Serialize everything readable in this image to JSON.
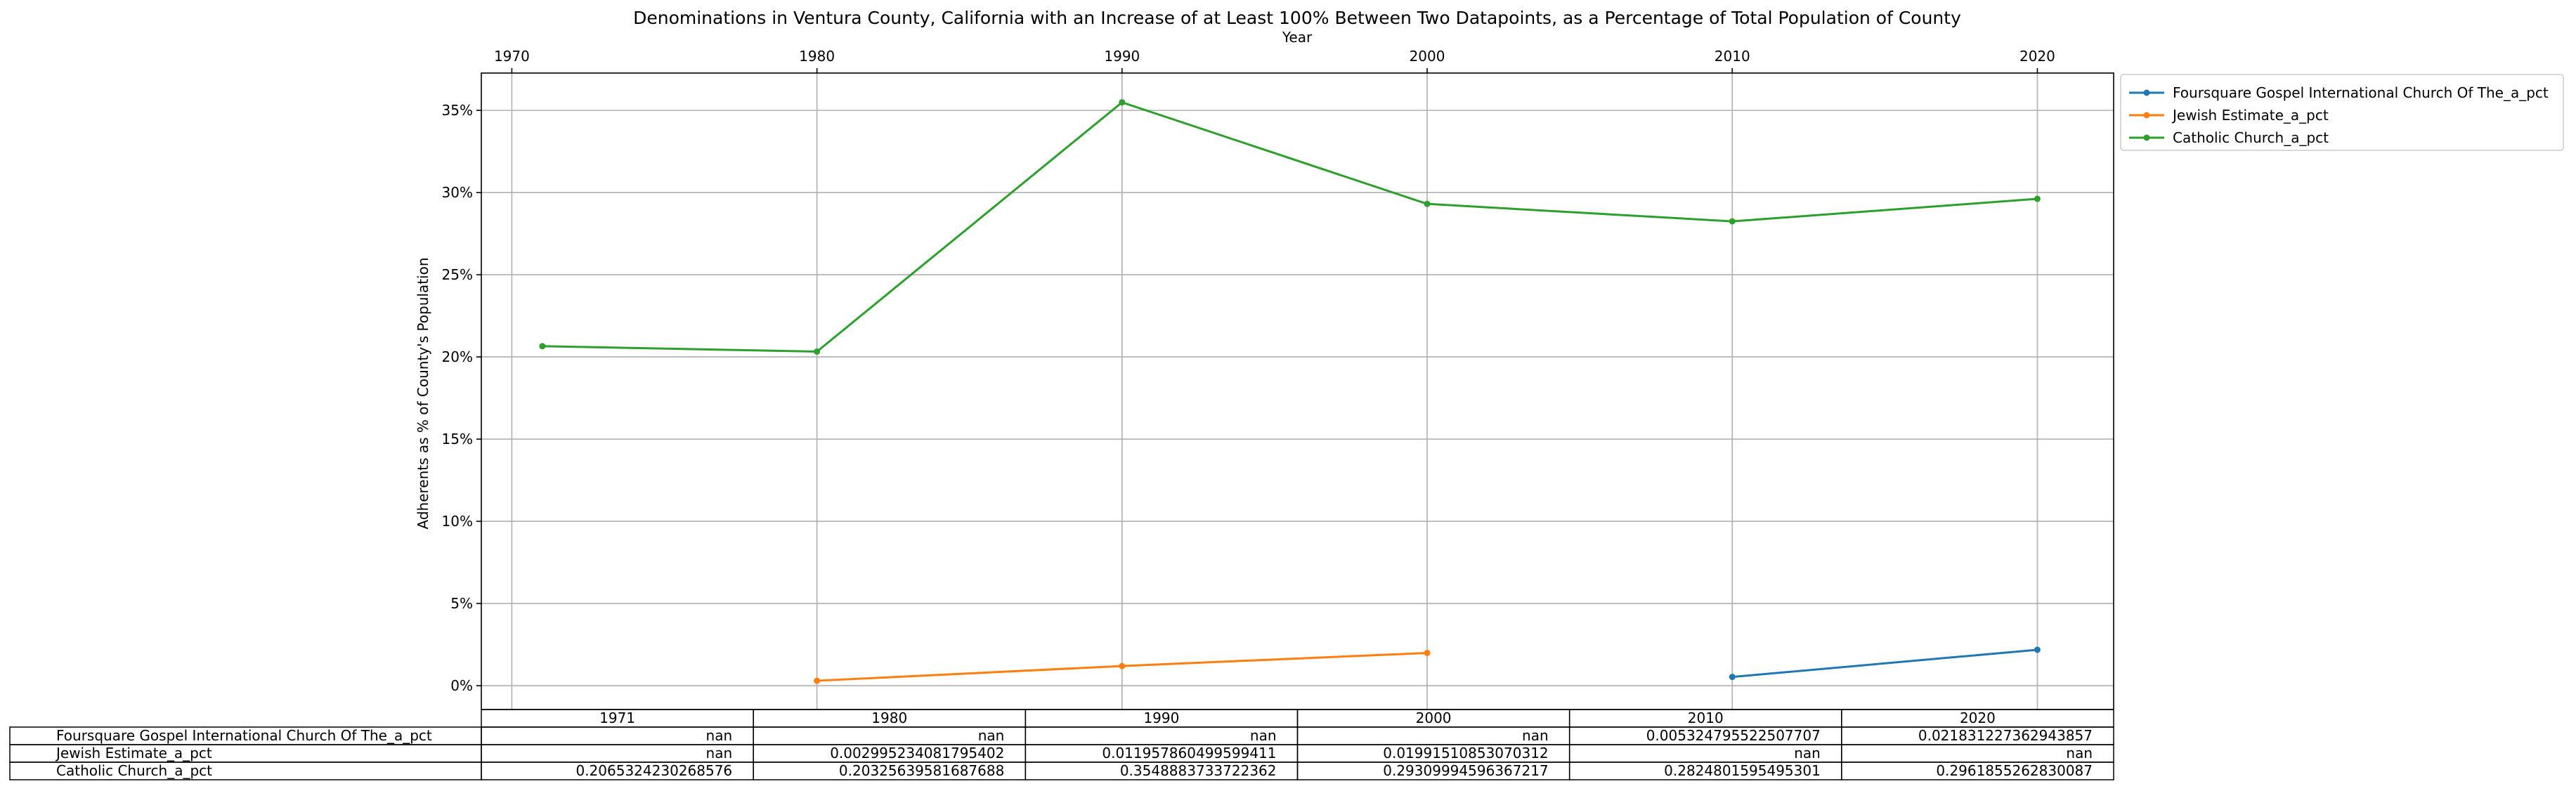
{
  "chart_data": {
    "type": "line",
    "title": "Denominations in Ventura County, California with an Increase of at Least 100% Between Two Datapoints, as a Percentage of Total Population of County",
    "xlabel": "Year",
    "ylabel": "Adherents as % of County's Population",
    "x_ticks": [
      "1970",
      "1980",
      "1990",
      "2000",
      "2010",
      "2020"
    ],
    "x_tick_values": [
      1970,
      1980,
      1990,
      2000,
      2010,
      2020
    ],
    "xlim": [
      1969,
      2022.5
    ],
    "y_ticks": [
      "0%",
      "5%",
      "10%",
      "15%",
      "20%",
      "25%",
      "30%",
      "35%"
    ],
    "y_tick_values": [
      0,
      0.05,
      0.1,
      0.15,
      0.2,
      0.25,
      0.3,
      0.35
    ],
    "ylim": [
      -0.0145,
      0.3727
    ],
    "grid": true,
    "legend_position": "outside top-right",
    "x": [
      1971,
      1980,
      1990,
      2000,
      2010,
      2020
    ],
    "series": [
      {
        "name": "Foursquare Gospel International Church Of The_a_pct",
        "color": "#1f77b4",
        "values": [
          null,
          null,
          null,
          null,
          0.005324795522507707,
          0.021831227362943857
        ]
      },
      {
        "name": "Jewish Estimate_a_pct",
        "color": "#ff7f0e",
        "values": [
          null,
          0.002995234081795402,
          0.011957860499599411,
          0.01991510853070312,
          null,
          null
        ]
      },
      {
        "name": "Catholic Church_a_pct",
        "color": "#2ca02c",
        "values": [
          0.2065324230268576,
          0.20325639581687688,
          0.3548883733722362,
          0.29309994596367217,
          0.2824801595495301,
          0.2961855262830087
        ]
      }
    ],
    "table": {
      "columns": [
        "1971",
        "1980",
        "1990",
        "2000",
        "2010",
        "2020"
      ],
      "rows": [
        {
          "label": "Foursquare Gospel International Church Of The_a_pct",
          "cells": [
            "nan",
            "nan",
            "nan",
            "nan",
            "0.005324795522507707",
            "0.021831227362943857"
          ]
        },
        {
          "label": "Jewish Estimate_a_pct",
          "cells": [
            "nan",
            "0.002995234081795402",
            "0.011957860499599411",
            "0.01991510853070312",
            "nan",
            "nan"
          ]
        },
        {
          "label": "Catholic Church_a_pct",
          "cells": [
            "0.2065324230268576",
            "0.20325639581687688",
            "0.3548883733722362",
            "0.29309994596367217",
            "0.2824801595495301",
            "0.2961855262830087"
          ]
        }
      ]
    }
  }
}
